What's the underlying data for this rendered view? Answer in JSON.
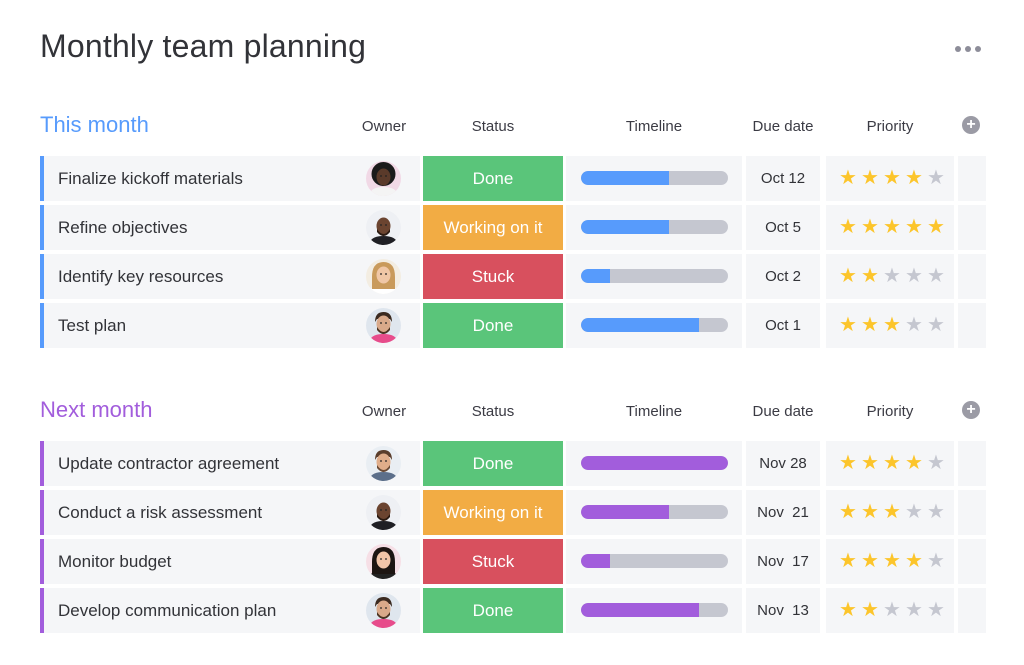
{
  "board": {
    "title": "Monthly team planning"
  },
  "columns": {
    "owner": "Owner",
    "status": "Status",
    "timeline": "Timeline",
    "due_date": "Due date",
    "priority": "Priority"
  },
  "colors": {
    "this_month": "#579bfc",
    "next_month": "#a25ddc",
    "done": "#5ac57a",
    "working": "#f2ac44",
    "stuck": "#d8505e",
    "star_on": "#fcc52b",
    "star_off": "#c5c7d0"
  },
  "groups": [
    {
      "title": "This month",
      "color": "#579bfc",
      "items": [
        {
          "name": "Finalize kickoff materials",
          "status": "Done",
          "status_color": "#5ac57a",
          "timeline_progress": 0.6,
          "due": "Oct 12",
          "priority": 4,
          "owner_icon": "avatar-woman-dark-curly"
        },
        {
          "name": "Refine objectives",
          "status": "Working on it",
          "status_color": "#f2ac44",
          "timeline_progress": 0.6,
          "due": "Oct 5",
          "priority": 5,
          "owner_icon": "avatar-man-bald-beard"
        },
        {
          "name": "Identify key resources",
          "status": "Stuck",
          "status_color": "#d8505e",
          "timeline_progress": 0.2,
          "due": "Oct 2",
          "priority": 2,
          "owner_icon": "avatar-woman-blonde"
        },
        {
          "name": "Test plan",
          "status": "Done",
          "status_color": "#5ac57a",
          "timeline_progress": 0.8,
          "due": "Oct 1",
          "priority": 3,
          "owner_icon": "avatar-man-beard"
        }
      ]
    },
    {
      "title": "Next month",
      "color": "#a25ddc",
      "items": [
        {
          "name": "Update contractor agreement",
          "status": "Done",
          "status_color": "#5ac57a",
          "timeline_progress": 1.0,
          "due": "Nov 28",
          "priority": 4,
          "owner_icon": "avatar-man-smiling"
        },
        {
          "name": "Conduct a risk assessment",
          "status": "Working on it",
          "status_color": "#f2ac44",
          "timeline_progress": 0.6,
          "due": "Nov  21",
          "priority": 3,
          "owner_icon": "avatar-man-bald-beard"
        },
        {
          "name": "Monitor budget",
          "status": "Stuck",
          "status_color": "#d8505e",
          "timeline_progress": 0.2,
          "due": "Nov  17",
          "priority": 4,
          "owner_icon": "avatar-woman-dark-hair"
        },
        {
          "name": "Develop communication plan",
          "status": "Done",
          "status_color": "#5ac57a",
          "timeline_progress": 0.8,
          "due": "Nov  13",
          "priority": 2,
          "owner_icon": "avatar-man-beard"
        }
      ]
    }
  ]
}
